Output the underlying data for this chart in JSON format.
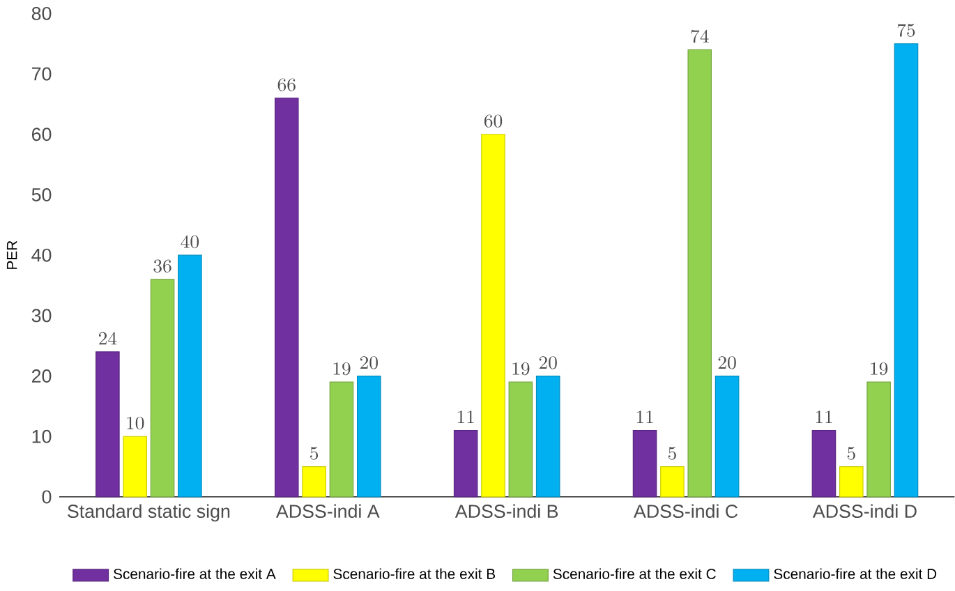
{
  "chart_data": {
    "type": "bar",
    "ylabel": "PER",
    "categories": [
      "Standard static sign",
      "ADSS-indi A",
      "ADSS-indi B",
      "ADSS-indi C",
      "ADSS-indi D"
    ],
    "series": [
      {
        "name": "Scenario-fire at the exit A",
        "color": "#7030a0",
        "values": [
          24,
          66,
          11,
          11,
          11
        ]
      },
      {
        "name": "Scenario-fire at the exit B",
        "color": "#ffff00",
        "values": [
          10,
          5,
          60,
          5,
          5
        ]
      },
      {
        "name": "Scenario-fire at the exit C",
        "color": "#92d050",
        "values": [
          36,
          19,
          19,
          74,
          19
        ]
      },
      {
        "name": "Scenario-fire at the exit D",
        "color": "#00b0f0",
        "values": [
          40,
          20,
          20,
          20,
          75
        ]
      }
    ],
    "ylim": [
      0,
      80
    ],
    "yticks": [
      0,
      10,
      20,
      30,
      40,
      50,
      60,
      70,
      80
    ],
    "data_labels": true,
    "grid": false,
    "legend": "bottom"
  }
}
